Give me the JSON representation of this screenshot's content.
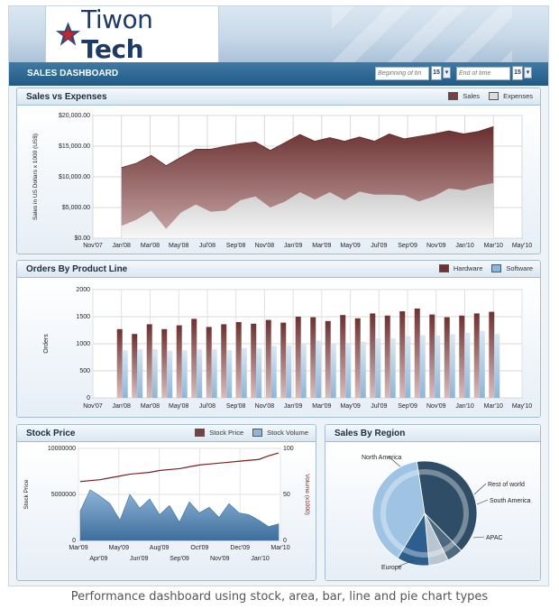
{
  "header": {
    "brand_regular": "Tiwon ",
    "brand_bold": "Tech",
    "dashboard_title": "SALES DASHBOARD",
    "begin_placeholder": "Beginning of tin",
    "end_placeholder": "End of time",
    "cal_label": "15",
    "dropdown_glyph": "▾"
  },
  "colors": {
    "sales": "#7a3f3f",
    "expenses": "#dcdcdc",
    "hardware": "#6e3232",
    "software": "#8fb5d8",
    "accent_blue": "#225a86"
  },
  "panels": {
    "sales_vs_expenses": {
      "title": "Sales vs Expenses",
      "legend": [
        "Sales",
        "Expenses"
      ]
    },
    "orders": {
      "title": "Orders By Product Line",
      "legend": [
        "Hardware",
        "Software"
      ]
    },
    "stock": {
      "title": "Stock Price",
      "legend": [
        "Stock Price",
        "Stock Volume"
      ]
    },
    "region": {
      "title": "Sales By Region"
    }
  },
  "caption": "Performance dashboard using stock, area, bar, line and pie chart types",
  "chart_data": [
    {
      "type": "area",
      "ylabel": "Sales in US Dollars x 1000 (US$)",
      "ylim": [
        0,
        20000
      ],
      "yticks": [
        "$0.00",
        "$5,000.00",
        "$10,000.00",
        "$15,000.00",
        "$20,000.00"
      ],
      "xticks": [
        "Nov'07",
        "Jan'08",
        "Mar'08",
        "May'08",
        "Jul'08",
        "Sep'08",
        "Nov'08",
        "Jan'09",
        "Mar'09",
        "May'09",
        "Jul'09",
        "Sep'09",
        "Nov'09",
        "Jan'10",
        "Mar'10",
        "May'10"
      ],
      "series": [
        {
          "name": "Sales",
          "values": [
            11500,
            12200,
            13500,
            11800,
            13200,
            14500,
            14500,
            15000,
            15400,
            15700,
            14300,
            15600,
            16900,
            15800,
            16400,
            15800,
            16500,
            15800,
            17000,
            16200,
            16600,
            17000,
            17500,
            17000,
            17400,
            18200
          ]
        },
        {
          "name": "Expenses",
          "values": [
            2000,
            3000,
            4500,
            1500,
            4200,
            5500,
            4300,
            4500,
            6200,
            6800,
            5000,
            6000,
            7500,
            6300,
            7500,
            6200,
            7600,
            7100,
            7100,
            7000,
            6000,
            6800,
            8100,
            7800,
            8500,
            9000
          ]
        }
      ]
    },
    {
      "type": "bar",
      "ylabel": "Orders",
      "ylim": [
        0,
        2000
      ],
      "yticks": [
        "0",
        "500",
        "1000",
        "1500",
        "2000"
      ],
      "xticks": [
        "Nov'07",
        "Jan'08",
        "Mar'08",
        "May'08",
        "Jul'08",
        "Sep'08",
        "Nov'08",
        "Jan'09",
        "Mar'09",
        "May'09",
        "Jul'09",
        "Sep'09",
        "Nov'09",
        "Jan'10",
        "Mar'10",
        "May'10"
      ],
      "series": [
        {
          "name": "Hardware",
          "values": [
            1270,
            1180,
            1360,
            1270,
            1340,
            1460,
            1310,
            1360,
            1400,
            1370,
            1440,
            1390,
            1500,
            1490,
            1420,
            1530,
            1470,
            1560,
            1520,
            1600,
            1650,
            1540,
            1490,
            1520,
            1560,
            1590
          ]
        },
        {
          "name": "Software",
          "values": [
            880,
            900,
            900,
            870,
            880,
            900,
            900,
            880,
            920,
            920,
            960,
            970,
            1000,
            1060,
            1000,
            1020,
            1040,
            1100,
            1100,
            1140,
            1160,
            1150,
            1180,
            1200,
            1240,
            1180
          ]
        }
      ]
    },
    {
      "type": "line",
      "ylabel": "Stock Price",
      "y2label": "Volume (x1000)",
      "ylim": [
        0,
        10000000
      ],
      "y2lim": [
        0,
        100
      ],
      "yticks": [
        "0",
        "5000000",
        "10000000"
      ],
      "y2ticks": [
        "0",
        "50",
        "100"
      ],
      "xticks_top": [
        "Mar'09",
        "May'09",
        "Aug'09",
        "Oct'09",
        "Dec'09",
        "Mar'10"
      ],
      "xticks_bottom": [
        "Apr'09",
        "Jun'09",
        "Sep'09",
        "Nov'09",
        "Jan'10"
      ],
      "series": [
        {
          "name": "Stock Price",
          "values": [
            6400000,
            6500000,
            6600000,
            6800000,
            7000000,
            7200000,
            7300000,
            7400000,
            7600000,
            7700000,
            7800000,
            8000000,
            8200000,
            8300000,
            8400000,
            8500000,
            8600000,
            8700000,
            8800000,
            9200000,
            9500000
          ]
        },
        {
          "name": "Stock Volume",
          "values": [
            32,
            55,
            48,
            40,
            22,
            50,
            35,
            45,
            28,
            38,
            20,
            42,
            30,
            36,
            25,
            40,
            30,
            28,
            22,
            15,
            18
          ]
        }
      ]
    },
    {
      "type": "pie",
      "categories": [
        "North America",
        "Rest of world",
        "South America",
        "APAC",
        "Europe"
      ],
      "values": [
        40,
        5,
        6,
        10,
        39
      ]
    }
  ]
}
